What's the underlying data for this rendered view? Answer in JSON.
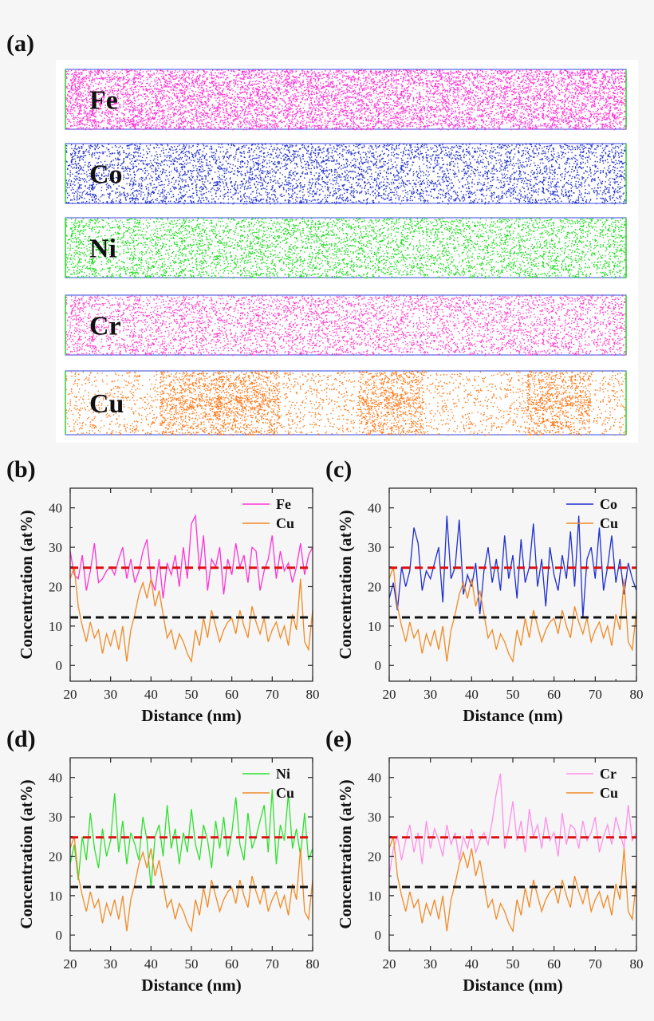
{
  "panel_labels": {
    "a": "(a)",
    "b": "(b)",
    "c": "(c)",
    "d": "(d)",
    "e": "(e)"
  },
  "apt_maps": [
    {
      "element": "Fe",
      "color": "#ff33d6",
      "density": 9000
    },
    {
      "element": "Co",
      "color": "#2230cc",
      "density": 9000
    },
    {
      "element": "Ni",
      "color": "#22dd22",
      "density": 9000
    },
    {
      "element": "Cr",
      "color": "#ff44cc",
      "density": 9000
    },
    {
      "element": "Cu",
      "color": "#ff7a1a",
      "density": 5000,
      "clustered": true
    }
  ],
  "colors": {
    "Fe": "#ff33d6",
    "Co": "#1f2fd0",
    "Ni": "#2fe02f",
    "Cr": "#ff8fe8",
    "Cu": "#f08a24",
    "ref_high": "#dd1111",
    "ref_low": "#111111"
  },
  "chart_data": [
    {
      "type": "line",
      "panel": "(b)",
      "xlabel": "Distance (nm)",
      "ylabel": "Concentration (at%)",
      "xlim": [
        20,
        80
      ],
      "ylim": [
        -4,
        45
      ],
      "xticks": [
        "20",
        "30",
        "40",
        "50",
        "60",
        "70",
        "80"
      ],
      "yticks": [
        "0",
        "10",
        "20",
        "30",
        "40"
      ],
      "reference_lines": [
        24.8,
        12.2
      ],
      "series": [
        {
          "name": "Fe",
          "color": "#ff33d6",
          "x": [
            20,
            21,
            22,
            23,
            24,
            25,
            26,
            27,
            28,
            29,
            30,
            31,
            32,
            33,
            34,
            35,
            36,
            37,
            38,
            39,
            40,
            41,
            42,
            43,
            44,
            45,
            46,
            47,
            48,
            49,
            50,
            51,
            52,
            53,
            54,
            55,
            56,
            57,
            58,
            59,
            60,
            61,
            62,
            63,
            64,
            65,
            66,
            67,
            68,
            69,
            70,
            71,
            72,
            73,
            74,
            75,
            76,
            77,
            78,
            79,
            80
          ],
          "values": [
            29,
            23,
            22,
            28,
            19,
            24,
            31,
            21,
            22,
            24,
            25,
            23,
            27,
            30,
            22,
            27,
            21,
            24,
            29,
            32,
            22,
            19,
            27,
            17,
            26,
            23,
            28,
            20,
            30,
            22,
            36,
            38,
            24,
            33,
            19,
            27,
            25,
            30,
            18,
            27,
            23,
            31,
            25,
            28,
            21,
            30,
            29,
            19,
            24,
            27,
            33,
            22,
            29,
            24,
            26,
            21,
            25,
            31,
            23,
            28,
            30
          ]
        },
        {
          "name": "Cu",
          "color": "#f08a24",
          "x": [
            20,
            21,
            22,
            23,
            24,
            25,
            26,
            27,
            28,
            29,
            30,
            31,
            32,
            33,
            34,
            35,
            36,
            37,
            38,
            39,
            40,
            41,
            42,
            43,
            44,
            45,
            46,
            47,
            48,
            49,
            50,
            51,
            52,
            53,
            54,
            55,
            56,
            57,
            58,
            59,
            60,
            61,
            62,
            63,
            64,
            65,
            66,
            67,
            68,
            69,
            70,
            71,
            72,
            73,
            74,
            75,
            76,
            77,
            78,
            79,
            80
          ],
          "values": [
            22,
            25,
            15,
            10,
            6,
            11,
            7,
            9,
            3,
            8,
            5,
            9,
            4,
            10,
            1,
            9,
            13,
            18,
            21,
            17,
            22,
            15,
            19,
            13,
            7,
            9,
            4,
            8,
            6,
            3,
            1,
            9,
            5,
            12,
            7,
            14,
            10,
            6,
            9,
            11,
            12,
            8,
            14,
            10,
            7,
            15,
            11,
            8,
            12,
            6,
            9,
            11,
            7,
            10,
            5,
            13,
            9,
            22,
            6,
            4,
            14
          ]
        }
      ]
    },
    {
      "type": "line",
      "panel": "(c)",
      "xlabel": "Distance (nm)",
      "ylabel": "Concentration (at%)",
      "xlim": [
        20,
        80
      ],
      "ylim": [
        -4,
        45
      ],
      "xticks": [
        "20",
        "30",
        "40",
        "50",
        "60",
        "70",
        "80"
      ],
      "yticks": [
        "0",
        "10",
        "20",
        "30",
        "40"
      ],
      "reference_lines": [
        24.8,
        12.2
      ],
      "series": [
        {
          "name": "Co",
          "color": "#1f2fd0",
          "x": [
            20,
            21,
            22,
            23,
            24,
            25,
            26,
            27,
            28,
            29,
            30,
            31,
            32,
            33,
            34,
            35,
            36,
            37,
            38,
            39,
            40,
            41,
            42,
            43,
            44,
            45,
            46,
            47,
            48,
            49,
            50,
            51,
            52,
            53,
            54,
            55,
            56,
            57,
            58,
            59,
            60,
            61,
            62,
            63,
            64,
            65,
            66,
            67,
            68,
            69,
            70,
            71,
            72,
            73,
            74,
            75,
            76,
            77,
            78,
            79,
            80
          ],
          "values": [
            17,
            21,
            14,
            25,
            20,
            24,
            35,
            31,
            19,
            24,
            22,
            26,
            30,
            16,
            38,
            22,
            25,
            37,
            18,
            23,
            20,
            26,
            13,
            24,
            30,
            21,
            27,
            19,
            33,
            22,
            28,
            17,
            32,
            21,
            25,
            36,
            20,
            27,
            15,
            30,
            23,
            19,
            28,
            22,
            34,
            20,
            38,
            12,
            27,
            30,
            22,
            35,
            19,
            25,
            33,
            21,
            27,
            18,
            26,
            22,
            19
          ]
        },
        {
          "name": "Cu",
          "color": "#f08a24",
          "x": [
            20,
            21,
            22,
            23,
            24,
            25,
            26,
            27,
            28,
            29,
            30,
            31,
            32,
            33,
            34,
            35,
            36,
            37,
            38,
            39,
            40,
            41,
            42,
            43,
            44,
            45,
            46,
            47,
            48,
            49,
            50,
            51,
            52,
            53,
            54,
            55,
            56,
            57,
            58,
            59,
            60,
            61,
            62,
            63,
            64,
            65,
            66,
            67,
            68,
            69,
            70,
            71,
            72,
            73,
            74,
            75,
            76,
            77,
            78,
            79,
            80
          ],
          "values": [
            22,
            25,
            15,
            10,
            6,
            11,
            7,
            9,
            3,
            8,
            5,
            9,
            4,
            10,
            1,
            9,
            13,
            18,
            21,
            17,
            22,
            15,
            19,
            13,
            7,
            9,
            4,
            8,
            6,
            3,
            1,
            9,
            5,
            12,
            7,
            14,
            10,
            6,
            9,
            11,
            12,
            8,
            14,
            10,
            7,
            15,
            11,
            8,
            12,
            6,
            9,
            11,
            7,
            10,
            5,
            13,
            9,
            22,
            6,
            4,
            14
          ]
        }
      ]
    },
    {
      "type": "line",
      "panel": "(d)",
      "xlabel": "Distance (nm)",
      "ylabel": "Concentration (at%)",
      "xlim": [
        20,
        80
      ],
      "ylim": [
        -4,
        45
      ],
      "xticks": [
        "20",
        "30",
        "40",
        "50",
        "60",
        "70",
        "80"
      ],
      "yticks": [
        "0",
        "10",
        "20",
        "30",
        "40"
      ],
      "reference_lines": [
        24.8,
        12.2
      ],
      "series": [
        {
          "name": "Ni",
          "color": "#2fe02f",
          "x": [
            20,
            21,
            22,
            23,
            24,
            25,
            26,
            27,
            28,
            29,
            30,
            31,
            32,
            33,
            34,
            35,
            36,
            37,
            38,
            39,
            40,
            41,
            42,
            43,
            44,
            45,
            46,
            47,
            48,
            49,
            50,
            51,
            52,
            53,
            54,
            55,
            56,
            57,
            58,
            59,
            60,
            61,
            62,
            63,
            64,
            65,
            66,
            67,
            68,
            69,
            70,
            71,
            72,
            73,
            74,
            75,
            76,
            77,
            78,
            79,
            80
          ],
          "values": [
            18,
            23,
            14,
            25,
            19,
            31,
            22,
            17,
            27,
            20,
            24,
            36,
            21,
            29,
            18,
            26,
            23,
            19,
            30,
            24,
            12,
            25,
            28,
            20,
            33,
            22,
            27,
            18,
            26,
            21,
            32,
            23,
            19,
            28,
            24,
            17,
            29,
            22,
            30,
            20,
            26,
            35,
            23,
            19,
            31,
            22,
            25,
            29,
            33,
            21,
            37,
            18,
            28,
            24,
            36,
            22,
            27,
            20,
            31,
            19,
            22
          ]
        },
        {
          "name": "Cu",
          "color": "#f08a24",
          "x": [
            20,
            21,
            22,
            23,
            24,
            25,
            26,
            27,
            28,
            29,
            30,
            31,
            32,
            33,
            34,
            35,
            36,
            37,
            38,
            39,
            40,
            41,
            42,
            43,
            44,
            45,
            46,
            47,
            48,
            49,
            50,
            51,
            52,
            53,
            54,
            55,
            56,
            57,
            58,
            59,
            60,
            61,
            62,
            63,
            64,
            65,
            66,
            67,
            68,
            69,
            70,
            71,
            72,
            73,
            74,
            75,
            76,
            77,
            78,
            79,
            80
          ],
          "values": [
            22,
            25,
            15,
            10,
            6,
            11,
            7,
            9,
            3,
            8,
            5,
            9,
            4,
            10,
            1,
            9,
            13,
            18,
            21,
            17,
            22,
            15,
            19,
            13,
            7,
            9,
            4,
            8,
            6,
            3,
            1,
            9,
            5,
            12,
            7,
            14,
            10,
            6,
            9,
            11,
            12,
            8,
            14,
            10,
            7,
            15,
            11,
            8,
            12,
            6,
            9,
            11,
            7,
            10,
            5,
            13,
            9,
            22,
            6,
            4,
            14
          ]
        }
      ]
    },
    {
      "type": "line",
      "panel": "(e)",
      "xlabel": "Distance (nm)",
      "ylabel": "Concentration (at%)",
      "xlim": [
        20,
        80
      ],
      "ylim": [
        -4,
        45
      ],
      "xticks": [
        "20",
        "30",
        "40",
        "50",
        "60",
        "70",
        "80"
      ],
      "yticks": [
        "0",
        "10",
        "20",
        "30",
        "40"
      ],
      "reference_lines": [
        24.8,
        12.2
      ],
      "series": [
        {
          "name": "Cr",
          "color": "#ff8fe8",
          "x": [
            20,
            21,
            22,
            23,
            24,
            25,
            26,
            27,
            28,
            29,
            30,
            31,
            32,
            33,
            34,
            35,
            36,
            37,
            38,
            39,
            40,
            41,
            42,
            43,
            44,
            45,
            46,
            47,
            48,
            49,
            50,
            51,
            52,
            53,
            54,
            55,
            56,
            57,
            58,
            59,
            60,
            61,
            62,
            63,
            64,
            65,
            66,
            67,
            68,
            69,
            70,
            71,
            72,
            73,
            74,
            75,
            76,
            77,
            78,
            79,
            80
          ],
          "values": [
            15,
            22,
            25,
            19,
            24,
            28,
            21,
            26,
            18,
            29,
            22,
            27,
            24,
            20,
            28,
            23,
            26,
            19,
            25,
            22,
            27,
            21,
            24,
            26,
            23,
            29,
            36,
            41,
            22,
            27,
            34,
            24,
            29,
            21,
            32,
            25,
            28,
            22,
            30,
            24,
            26,
            20,
            31,
            23,
            28,
            27,
            22,
            29,
            24,
            26,
            30,
            21,
            25,
            28,
            23,
            30,
            26,
            22,
            33,
            24,
            26
          ]
        },
        {
          "name": "Cu",
          "color": "#f08a24",
          "x": [
            20,
            21,
            22,
            23,
            24,
            25,
            26,
            27,
            28,
            29,
            30,
            31,
            32,
            33,
            34,
            35,
            36,
            37,
            38,
            39,
            40,
            41,
            42,
            43,
            44,
            45,
            46,
            47,
            48,
            49,
            50,
            51,
            52,
            53,
            54,
            55,
            56,
            57,
            58,
            59,
            60,
            61,
            62,
            63,
            64,
            65,
            66,
            67,
            68,
            69,
            70,
            71,
            72,
            73,
            74,
            75,
            76,
            77,
            78,
            79,
            80
          ],
          "values": [
            22,
            25,
            15,
            10,
            6,
            11,
            7,
            9,
            3,
            8,
            5,
            9,
            4,
            10,
            1,
            9,
            13,
            18,
            21,
            17,
            22,
            15,
            19,
            13,
            7,
            9,
            4,
            8,
            6,
            3,
            1,
            9,
            5,
            12,
            7,
            14,
            10,
            6,
            9,
            11,
            12,
            8,
            14,
            10,
            7,
            15,
            11,
            8,
            12,
            6,
            9,
            11,
            7,
            10,
            5,
            13,
            9,
            22,
            6,
            4,
            14
          ]
        }
      ]
    }
  ]
}
